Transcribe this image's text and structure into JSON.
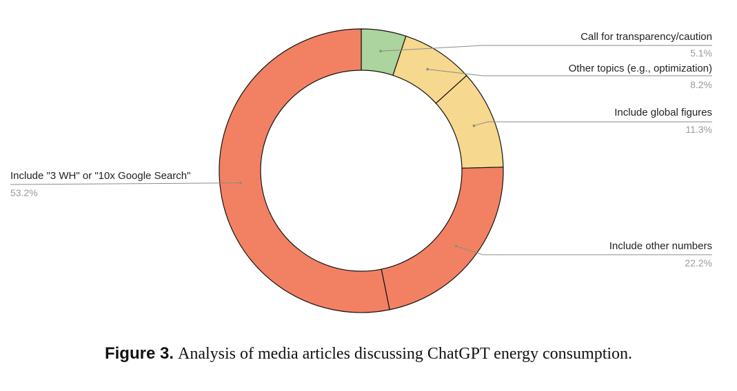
{
  "chart_data": {
    "type": "pie",
    "donut": true,
    "slices": [
      {
        "label": "Call for transparency/caution",
        "value": 5.1,
        "value_label": "5.1%",
        "color": "#acd49e"
      },
      {
        "label": "Other topics (e.g., optimization)",
        "value": 8.2,
        "value_label": "8.2%",
        "color": "#f6d88e"
      },
      {
        "label": "Include global figures",
        "value": 11.3,
        "value_label": "11.3%",
        "color": "#f6d88e"
      },
      {
        "label": "Include other numbers",
        "value": 22.2,
        "value_label": "22.2%",
        "color": "#f28163"
      },
      {
        "label": "Include \"3 WH\" or \"10x Google Search\"",
        "value": 53.2,
        "value_label": "53.2%",
        "color": "#f28163"
      }
    ]
  },
  "caption": {
    "label": "Figure 3.",
    "text": "Analysis of media articles discussing ChatGPT energy consumption."
  }
}
